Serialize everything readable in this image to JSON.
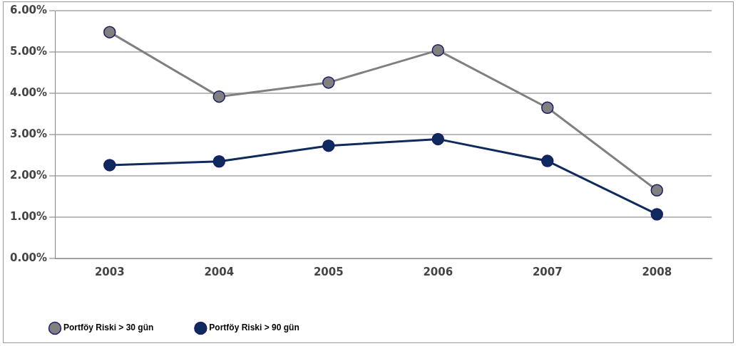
{
  "chart_data": {
    "type": "line",
    "categories": [
      "2003",
      "2004",
      "2005",
      "2006",
      "2007",
      "2008"
    ],
    "series": [
      {
        "name": "Portföy Riski > 30 gün",
        "color": "#808080",
        "values": [
          5.48,
          3.92,
          4.26,
          5.04,
          3.65,
          1.65
        ]
      },
      {
        "name": "Portföy Riski > 90 gün",
        "color": "#0f2a5c",
        "values": [
          2.26,
          2.35,
          2.73,
          2.89,
          2.36,
          1.07
        ]
      }
    ],
    "ylim": [
      0,
      6
    ],
    "yticks": [
      {
        "value": 0,
        "label": "0.00%"
      },
      {
        "value": 1,
        "label": "1.00%"
      },
      {
        "value": 2,
        "label": "2.00%"
      },
      {
        "value": 3,
        "label": "3.00%"
      },
      {
        "value": 4,
        "label": "4.00%"
      },
      {
        "value": 5,
        "label": "5.00%"
      },
      {
        "value": 6,
        "label": "6.00%"
      }
    ],
    "grid": "y",
    "legend": "bottom",
    "marker": "circle",
    "line_style": "solid"
  }
}
